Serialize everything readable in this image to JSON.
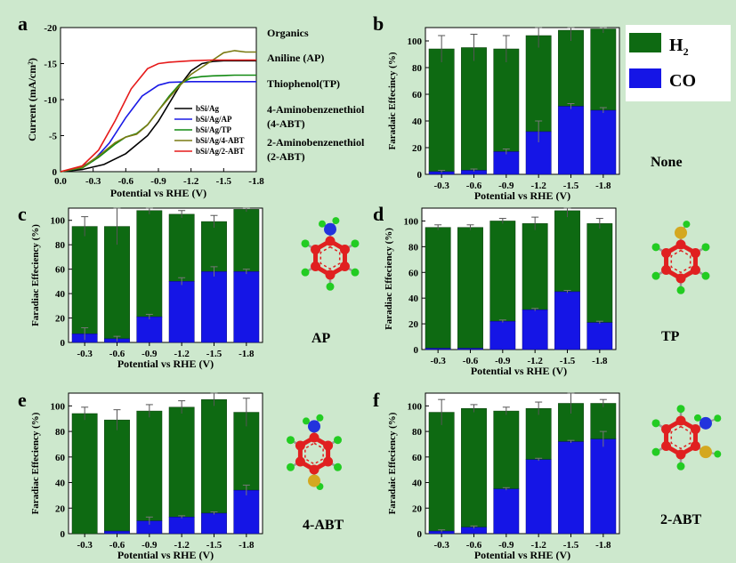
{
  "colors": {
    "background": "#cde8cd",
    "h2": "#0e6a12",
    "co": "#1515e6",
    "bSi_Ag": "#000000",
    "bSi_Ag_AP": "#1a1ae6",
    "bSi_Ag_TP": "#128a12",
    "bSi_Ag_4ABT": "#7a7a12",
    "bSi_Ag_2ABT": "#e61a1a"
  },
  "organics": {
    "title": "Organics",
    "items": [
      "Aniline (AP)",
      "Thiophenol(TP)",
      "4-Aminobenzenethiol",
      "(4-ABT)",
      "2-Aminobenzenethiol",
      "(2-ABT)"
    ]
  },
  "legend_b": {
    "h2": "H",
    "h2_sub": "2",
    "co": "CO"
  },
  "molecule_labels": {
    "b": "None",
    "c": "AP",
    "d": "TP",
    "e": "4-ABT",
    "f": "2-ABT"
  },
  "chart_data": [
    {
      "panel": "a",
      "type": "line",
      "xlabel": "Potential vs RHE (V)",
      "ylabel": "Current (mA/cm²)",
      "xlim": [
        0.0,
        -1.8
      ],
      "ylim": [
        0,
        -20
      ],
      "xticks": [
        "0.0",
        "-0.3",
        "-0.6",
        "-0.9",
        "-1.2",
        "-1.5",
        "-1.8"
      ],
      "yticks": [
        "0",
        "-5",
        "-10",
        "-15",
        "-20"
      ],
      "series": [
        {
          "name": "bSi/Ag",
          "key": "bSi_Ag",
          "x": [
            0,
            -0.2,
            -0.4,
            -0.6,
            -0.8,
            -0.9,
            -1.0,
            -1.1,
            -1.2,
            -1.3,
            -1.4,
            -1.5,
            -1.6,
            -1.7,
            -1.8
          ],
          "y": [
            0,
            -0.3,
            -1.0,
            -2.5,
            -5.0,
            -7.0,
            -9.5,
            -12.0,
            -14.0,
            -15.0,
            -15.3,
            -15.4,
            -15.4,
            -15.4,
            -15.4
          ]
        },
        {
          "name": "bSi/Ag/AP",
          "key": "bSi_Ag_AP",
          "x": [
            0,
            -0.15,
            -0.3,
            -0.45,
            -0.6,
            -0.75,
            -0.9,
            -1.0,
            -1.2,
            -1.4,
            -1.6,
            -1.8
          ],
          "y": [
            0,
            -0.4,
            -1.5,
            -4.0,
            -7.5,
            -10.5,
            -12.0,
            -12.4,
            -12.5,
            -12.5,
            -12.5,
            -12.5
          ]
        },
        {
          "name": "bSi/Ag/TP",
          "key": "bSi_Ag_TP",
          "x": [
            0,
            -0.2,
            -0.35,
            -0.5,
            -0.6,
            -0.7,
            -0.8,
            -0.9,
            -1.0,
            -1.1,
            -1.2,
            -1.3,
            -1.4,
            -1.6,
            -1.8
          ],
          "y": [
            0,
            -0.5,
            -2.0,
            -3.8,
            -4.8,
            -5.3,
            -6.5,
            -8.5,
            -10.5,
            -12.2,
            -13.0,
            -13.2,
            -13.3,
            -13.4,
            -13.4
          ]
        },
        {
          "name": "bSi/Ag/4-ABT",
          "key": "bSi_Ag_4ABT",
          "x": [
            0,
            -0.2,
            -0.35,
            -0.5,
            -0.6,
            -0.7,
            -0.8,
            -0.9,
            -1.0,
            -1.1,
            -1.2,
            -1.3,
            -1.4,
            -1.5,
            -1.6,
            -1.7,
            -1.8
          ],
          "y": [
            0,
            -0.6,
            -2.2,
            -4.0,
            -4.8,
            -5.2,
            -6.5,
            -8.5,
            -10.3,
            -12.0,
            -13.5,
            -14.5,
            -15.5,
            -16.5,
            -16.8,
            -16.6,
            -16.6
          ]
        },
        {
          "name": "bSi/Ag/2-ABT",
          "key": "bSi_Ag_2ABT",
          "x": [
            0,
            -0.2,
            -0.35,
            -0.5,
            -0.65,
            -0.8,
            -0.9,
            -1.0,
            -1.2,
            -1.4,
            -1.6,
            -1.8
          ],
          "y": [
            0,
            -0.8,
            -3.0,
            -7.0,
            -11.5,
            -14.3,
            -15.0,
            -15.2,
            -15.4,
            -15.5,
            -15.5,
            -15.5
          ]
        }
      ]
    },
    {
      "panel": "b",
      "type": "bar",
      "stacked": true,
      "categories": [
        "-0.3",
        "-0.6",
        "-0.9",
        "-1.2",
        "-1.5",
        "-1.8"
      ],
      "xlabel": "Potential vs RHE (V)",
      "ylabel": "Faradaic Effecincy (%)",
      "ylim": [
        0,
        110
      ],
      "yticks": [
        "0",
        "20",
        "40",
        "60",
        "80",
        "100"
      ],
      "series": [
        {
          "name": "CO",
          "values": [
            2,
            3,
            17,
            32,
            51,
            48
          ],
          "errors": [
            1,
            1,
            2,
            8,
            2,
            2
          ]
        },
        {
          "name": "H2",
          "values": [
            92,
            92,
            77,
            72,
            57,
            61
          ],
          "errors": [
            10,
            10,
            10,
            9,
            8,
            3
          ]
        }
      ]
    },
    {
      "panel": "c",
      "type": "bar",
      "stacked": true,
      "categories": [
        "-0.3",
        "-0.6",
        "-0.9",
        "-1.2",
        "-1.5",
        "-1.8"
      ],
      "xlabel": "Potential vs RHE (V)",
      "ylabel": "Faradiac Effeciency (%)",
      "ylim": [
        0,
        110
      ],
      "yticks": [
        "0",
        "20",
        "40",
        "60",
        "80",
        "100"
      ],
      "series": [
        {
          "name": "CO",
          "values": [
            7,
            3,
            21,
            50,
            58,
            58
          ],
          "errors": [
            5,
            2,
            2,
            3,
            4,
            2
          ]
        },
        {
          "name": "H2",
          "values": [
            88,
            92,
            87,
            55,
            41,
            51
          ],
          "errors": [
            8,
            15,
            3,
            3,
            5,
            2
          ]
        }
      ]
    },
    {
      "panel": "d",
      "type": "bar",
      "stacked": true,
      "categories": [
        "-0.3",
        "-0.6",
        "-0.9",
        "-1.2",
        "-1.5",
        "-1.8"
      ],
      "xlabel": "Potential vs RHE (V)",
      "ylabel": "Faradiac Effeciency (%)",
      "ylim": [
        0,
        110
      ],
      "yticks": [
        "0",
        "20",
        "40",
        "60",
        "80",
        "100"
      ],
      "series": [
        {
          "name": "CO",
          "values": [
            1,
            1,
            22,
            31,
            45,
            21
          ],
          "errors": [
            0,
            0,
            1,
            1,
            1,
            1
          ]
        },
        {
          "name": "H2",
          "values": [
            94,
            94,
            78,
            67,
            63,
            77
          ],
          "errors": [
            2,
            2,
            2,
            5,
            5,
            4
          ]
        }
      ]
    },
    {
      "panel": "e",
      "type": "bar",
      "stacked": true,
      "categories": [
        "-0.3",
        "-0.6",
        "-0.9",
        "-1.2",
        "-1.5",
        "-1.8"
      ],
      "xlabel": "Potential vs RHE (V)",
      "ylabel": "Faradiac Effeciency (%)",
      "ylim": [
        0,
        110
      ],
      "yticks": [
        "0",
        "20",
        "40",
        "60",
        "80",
        "100"
      ],
      "series": [
        {
          "name": "CO",
          "values": [
            0,
            2,
            10,
            13,
            16,
            34
          ],
          "errors": [
            0,
            0,
            3,
            1,
            1,
            4
          ]
        },
        {
          "name": "H2",
          "values": [
            94,
            87,
            86,
            86,
            89,
            61
          ],
          "errors": [
            5,
            8,
            5,
            5,
            5,
            11
          ]
        }
      ]
    },
    {
      "panel": "f",
      "type": "bar",
      "stacked": true,
      "categories": [
        "-0.3",
        "-0.6",
        "-0.9",
        "-1.2",
        "-1.5",
        "-1.8"
      ],
      "xlabel": "Potential vs RHE (V)",
      "ylabel": "Faradaic Effeciency (%)",
      "ylim": [
        0,
        110
      ],
      "yticks": [
        "0",
        "20",
        "40",
        "60",
        "80",
        "100"
      ],
      "series": [
        {
          "name": "CO",
          "values": [
            2,
            5,
            35,
            58,
            72,
            74
          ],
          "errors": [
            1,
            1,
            1,
            1,
            1,
            6
          ]
        },
        {
          "name": "H2",
          "values": [
            93,
            93,
            61,
            40,
            30,
            28
          ],
          "errors": [
            10,
            3,
            3,
            5,
            8,
            3
          ]
        }
      ]
    }
  ]
}
